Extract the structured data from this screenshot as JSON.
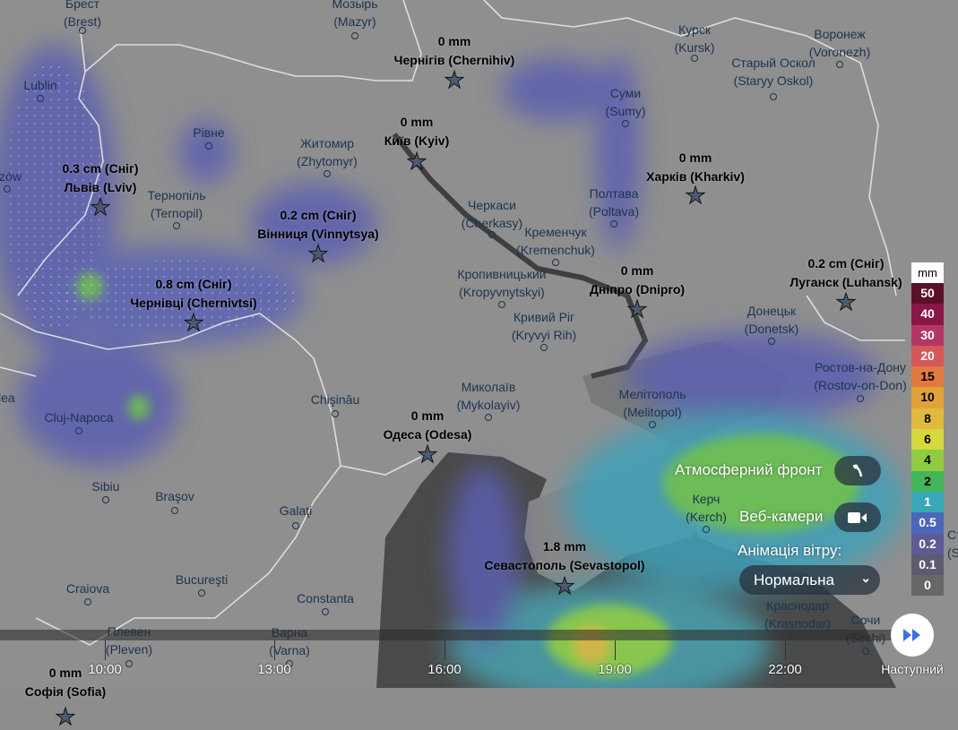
{
  "cities": [
    {
      "name": "Брест",
      "sub": "(Brest)"
    },
    {
      "name": "Мозырь",
      "sub": "(Mazyr)"
    },
    {
      "name": "Курск",
      "sub": "(Kursk)"
    },
    {
      "name": "Воронеж",
      "sub": "(Voronezh)"
    },
    {
      "name": "Старый Оскол",
      "sub": "(Staryy Oskol)"
    },
    {
      "name": "Lublin",
      "sub": ""
    },
    {
      "name": "Суми",
      "sub": "(Sumy)"
    },
    {
      "name": "Рівне",
      "sub": ""
    },
    {
      "name": "Житомир",
      "sub": "(Zhytomyr)"
    },
    {
      "name": "szów",
      "sub": ""
    },
    {
      "name": "Тернопіль",
      "sub": "(Ternopil)"
    },
    {
      "name": "Черкаси",
      "sub": "(Cherkasy)"
    },
    {
      "name": "Полтава",
      "sub": "(Poltava)"
    },
    {
      "name": "Кременчук",
      "sub": "(Kremenchuk)"
    },
    {
      "name": "Кропивницький",
      "sub": "(Kropyvnytskyi)"
    },
    {
      "name": "Кривий Ріг",
      "sub": "(Kryvyi Rih)"
    },
    {
      "name": "Донецьк",
      "sub": "(Donetsk)"
    },
    {
      "name": "Ростов-на-Дону",
      "sub": "(Rostov-on-Don)"
    },
    {
      "name": "Миколаїв",
      "sub": "(Mykolayiv)"
    },
    {
      "name": "Мелітополь",
      "sub": "(Melitopol)"
    },
    {
      "name": "Chişinău",
      "sub": ""
    },
    {
      "name": "Cluj-Napoca",
      "sub": ""
    },
    {
      "name": "dea",
      "sub": ""
    },
    {
      "name": "Sibiu",
      "sub": ""
    },
    {
      "name": "Braşov",
      "sub": ""
    },
    {
      "name": "Galaţi",
      "sub": ""
    },
    {
      "name": "Керч",
      "sub": "(Kerch)"
    },
    {
      "name": "Краснодар",
      "sub": "(Krasnodar)"
    },
    {
      "name": "Bucureşti",
      "sub": ""
    },
    {
      "name": "Craiova",
      "sub": ""
    },
    {
      "name": "Constanta",
      "sub": ""
    },
    {
      "name": "Плевен",
      "sub": "(Pleven)"
    },
    {
      "name": "Варна",
      "sub": "(Varna)"
    },
    {
      "name": "Сочи",
      "sub": "(Sochi)"
    },
    {
      "name": "Ста",
      "sub": "(St"
    }
  ],
  "forecasts": [
    {
      "value": "0 mm",
      "name": "Чернігів (Chernihiv)"
    },
    {
      "value": "0 mm",
      "name": "Київ (Kyiv)"
    },
    {
      "value": "0.3 cm (Сніг)",
      "name": "Львів (Lviv)"
    },
    {
      "value": "0.2 cm (Сніг)",
      "name": "Вінниця (Vinnytsya)"
    },
    {
      "value": "0 mm",
      "name": "Харків (Kharkiv)"
    },
    {
      "value": "0 mm",
      "name": "Дніпро (Dnipro)"
    },
    {
      "value": "0.2 cm (Сніг)",
      "name": "Луганск (Luhansk)"
    },
    {
      "value": "0.8 cm (Сніг)",
      "name": "Чернівці (Chernivtsi)"
    },
    {
      "value": "0 mm",
      "name": "Одеса (Odesa)"
    },
    {
      "value": "1.8 mm",
      "name": "Севастополь (Sevastopol)"
    },
    {
      "value": "0 mm",
      "name": "Софія (Sofia)"
    }
  ],
  "legend": {
    "unit": "mm",
    "steps": [
      {
        "label": "50",
        "color": "#5a0f2a",
        "text": "#fff"
      },
      {
        "label": "40",
        "color": "#8a1646",
        "text": "#fff"
      },
      {
        "label": "30",
        "color": "#b33766",
        "text": "#fff"
      },
      {
        "label": "20",
        "color": "#d4575a",
        "text": "#fff"
      },
      {
        "label": "15",
        "color": "#e07a3e",
        "text": "#000"
      },
      {
        "label": "10",
        "color": "#e2a23a",
        "text": "#000"
      },
      {
        "label": "8",
        "color": "#e0b93f",
        "text": "#000"
      },
      {
        "label": "6",
        "color": "#d5d83e",
        "text": "#000"
      },
      {
        "label": "4",
        "color": "#8fcc44",
        "text": "#000"
      },
      {
        "label": "2",
        "color": "#43b457",
        "text": "#000"
      },
      {
        "label": "1",
        "color": "#3aa7b8",
        "text": "#fff"
      },
      {
        "label": "0.5",
        "color": "#4a67b8",
        "text": "#fff"
      },
      {
        "label": "0.2",
        "color": "#5c5b95",
        "text": "#fff"
      },
      {
        "label": "0.1",
        "color": "#5c5b72",
        "text": "#fff"
      },
      {
        "label": "0",
        "color": "#666666",
        "text": "#fff"
      }
    ]
  },
  "controls": {
    "front_label": "Атмосферний фронт",
    "webcams_label": "Веб-камери",
    "wind_anim_label": "Анімація вітру:",
    "wind_anim_value": "Нормальна"
  },
  "timeline": {
    "times": [
      "10:00",
      "13:00",
      "16:00",
      "19:00",
      "22:00"
    ],
    "next_label": "Наступний"
  }
}
